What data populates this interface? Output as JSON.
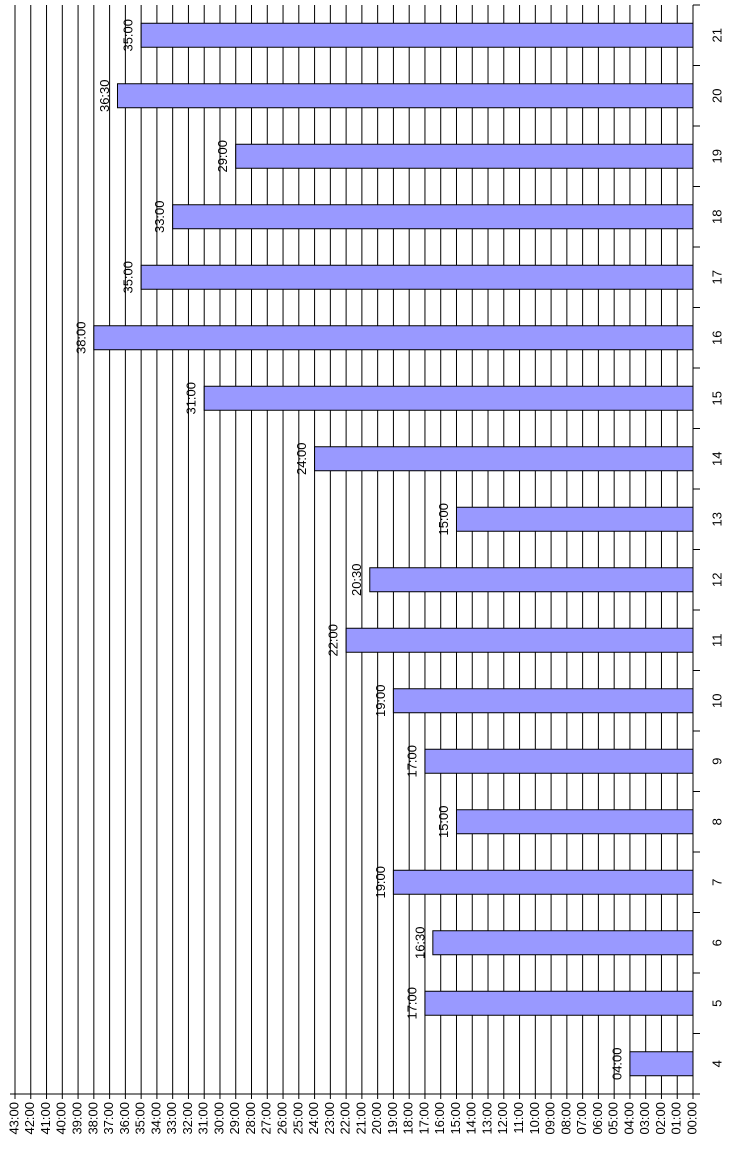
{
  "chart_data": {
    "type": "bar",
    "categories": [
      "4",
      "5",
      "6",
      "7",
      "8",
      "9",
      "10",
      "11",
      "12",
      "13",
      "14",
      "15",
      "16",
      "17",
      "18",
      "19",
      "20",
      "21"
    ],
    "values": [
      4,
      17,
      16.5,
      19,
      15,
      17,
      19,
      22,
      20.5,
      15,
      24,
      31,
      38,
      35,
      33,
      29,
      36.5,
      35
    ],
    "value_labels": [
      "04:00",
      "17:00",
      "16:30",
      "19:00",
      "15:00",
      "17:00",
      "19:00",
      "22:00",
      "20:30",
      "15:00",
      "24:00",
      "31:00",
      "38:00",
      "35:00",
      "33:00",
      "29:00",
      "36:30",
      "35:00"
    ],
    "color": "#9999ff",
    "ylim": [
      0,
      43
    ],
    "yticks": [
      {
        "value": 0,
        "label": "00:00"
      },
      {
        "value": 1,
        "label": "01:00"
      },
      {
        "value": 2,
        "label": "02:00"
      },
      {
        "value": 3,
        "label": "03:00"
      },
      {
        "value": 4,
        "label": "04:00"
      },
      {
        "value": 5,
        "label": "05:00"
      },
      {
        "value": 6,
        "label": "06:00"
      },
      {
        "value": 7,
        "label": "07:00"
      },
      {
        "value": 8,
        "label": "08:00"
      },
      {
        "value": 9,
        "label": "09:00"
      },
      {
        "value": 10,
        "label": "10:00"
      },
      {
        "value": 11,
        "label": "11:00"
      },
      {
        "value": 12,
        "label": "12:00"
      },
      {
        "value": 13,
        "label": "13:00"
      },
      {
        "value": 14,
        "label": "14:00"
      },
      {
        "value": 15,
        "label": "15:00"
      },
      {
        "value": 16,
        "label": "16:00"
      },
      {
        "value": 17,
        "label": "17:00"
      },
      {
        "value": 18,
        "label": "18:00"
      },
      {
        "value": 19,
        "label": "19:00"
      },
      {
        "value": 20,
        "label": "20:00"
      },
      {
        "value": 21,
        "label": "21:00"
      },
      {
        "value": 22,
        "label": "22:00"
      },
      {
        "value": 23,
        "label": "23:00"
      },
      {
        "value": 24,
        "label": "24:00"
      },
      {
        "value": 25,
        "label": "25:00"
      },
      {
        "value": 26,
        "label": "26:00"
      },
      {
        "value": 27,
        "label": "27:00"
      },
      {
        "value": 28,
        "label": "28:00"
      },
      {
        "value": 29,
        "label": "29:00"
      },
      {
        "value": 30,
        "label": "30:00"
      },
      {
        "value": 31,
        "label": "31:00"
      },
      {
        "value": 32,
        "label": "32:00"
      },
      {
        "value": 33,
        "label": "33:00"
      },
      {
        "value": 34,
        "label": "34:00"
      },
      {
        "value": 35,
        "label": "35:00"
      },
      {
        "value": 36,
        "label": "36:00"
      },
      {
        "value": 37,
        "label": "37:00"
      },
      {
        "value": 38,
        "label": "38:00"
      },
      {
        "value": 39,
        "label": "39:00"
      },
      {
        "value": 40,
        "label": "40:00"
      },
      {
        "value": 41,
        "label": "41:00"
      },
      {
        "value": 42,
        "label": "42:00"
      },
      {
        "value": 43,
        "label": "43:00"
      }
    ],
    "grid": true
  }
}
